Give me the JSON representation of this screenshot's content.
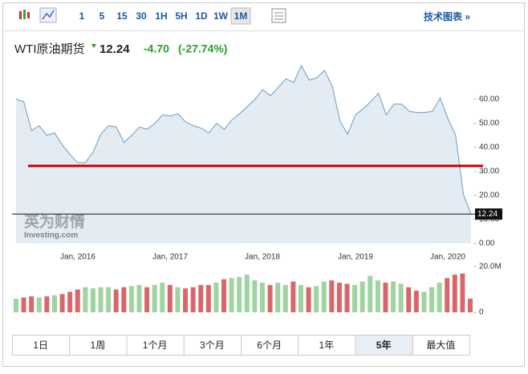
{
  "toolbar": {
    "intervals": [
      "1",
      "5",
      "15",
      "30",
      "1H",
      "5H",
      "1D",
      "1W",
      "1M"
    ],
    "selected": 8,
    "link": "技术图表 »"
  },
  "header": {
    "name": "WTI原油期货",
    "price": "12.24",
    "change": "-4.70",
    "change_pct": "(-27.74%)",
    "change_color": "#2a9d2a"
  },
  "chart_data": [
    {
      "type": "area",
      "color": "#7fa9cf",
      "fill": "#e4ecf3",
      "values": [
        60,
        59,
        47,
        49,
        45,
        46,
        41,
        37,
        33.6,
        33.7,
        38,
        45.5,
        49,
        48.5,
        42,
        45,
        48.5,
        47.5,
        50,
        53.5,
        53,
        54,
        50.5,
        49,
        48,
        46,
        50,
        47.5,
        51.5,
        54,
        57,
        60,
        64,
        61.5,
        65,
        68.5,
        67,
        74,
        68,
        69,
        72,
        65.5,
        51,
        45.5,
        53.5,
        56,
        59,
        62.5,
        53.5,
        58,
        58,
        55,
        54.5,
        54.5,
        55,
        60.5,
        52,
        45,
        20.5,
        12.24
      ],
      "x_labels": [
        "Jan, 2016",
        "Jan, 2017",
        "Jan, 2018",
        "Jan, 2019",
        "Jan, 2020"
      ],
      "ylim": [
        0,
        75
      ],
      "yticks": [
        {
          "value": 0,
          "label": "0.00"
        },
        {
          "value": 10,
          "label": "10.00"
        },
        {
          "value": 20,
          "label": "20.00"
        },
        {
          "value": 30,
          "label": "30.00"
        },
        {
          "value": 40,
          "label": "40.00"
        },
        {
          "value": 50,
          "label": "50.00"
        },
        {
          "value": 60,
          "label": "60.00"
        }
      ],
      "trend_line": {
        "value": 32.3,
        "color": "#cc0000"
      },
      "last_price": {
        "value": 12.24,
        "label": "12.24"
      },
      "watermark": [
        "英为财情",
        "Investing.com"
      ]
    },
    {
      "type": "bar",
      "up_color": "#9fd3a0",
      "down_color": "#d9676a",
      "values": [
        6,
        6.5,
        7,
        6.5,
        7,
        7.5,
        8,
        9,
        10,
        11,
        10.5,
        11,
        11,
        10,
        11,
        11.5,
        12,
        11,
        12,
        13,
        12,
        11,
        10.5,
        11,
        12,
        12,
        13,
        14.5,
        15,
        15.5,
        16.5,
        14,
        13,
        12,
        13,
        12,
        13.5,
        12,
        11,
        11.5,
        13.5,
        14,
        13,
        12.5,
        12,
        13.5,
        16,
        14,
        13,
        13.5,
        12.5,
        11,
        9.5,
        9,
        11,
        13,
        15,
        16.5,
        17,
        6
      ],
      "ylim": [
        0,
        20
      ],
      "yticks": [
        0,
        {
          "value": 20,
          "label": "20.0M"
        }
      ]
    }
  ],
  "periods": {
    "buttons": [
      "1日",
      "1周",
      "1个月",
      "3个月",
      "6个月",
      "1年",
      "5年",
      "最大值"
    ],
    "selected": 6
  }
}
